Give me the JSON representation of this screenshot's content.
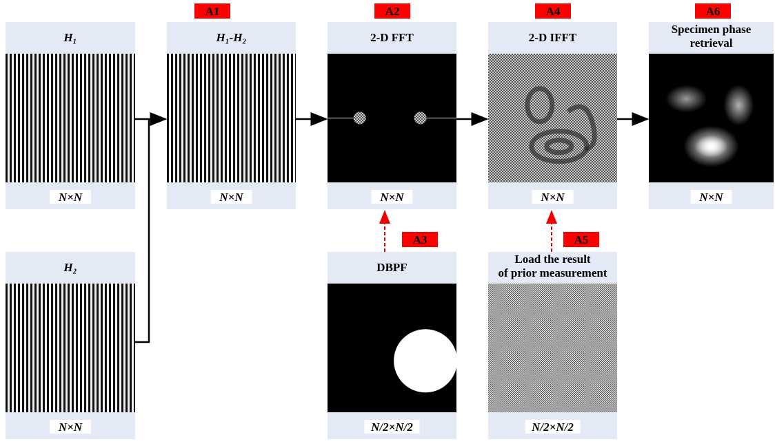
{
  "nodes": [
    {
      "title": "H₁",
      "size": "N×N"
    },
    {
      "title": "H₁-H₂",
      "size": "N×N"
    },
    {
      "title": "2-D FFT",
      "size": "N×N"
    },
    {
      "title": "2-D IFFT",
      "size": "N×N"
    },
    {
      "title": "Specimen phase retrieval",
      "size": "N×N"
    },
    {
      "title": "H₂",
      "size": "N×N"
    },
    {
      "title": "DBPF",
      "size": "N/2×N/2"
    },
    {
      "title": "Load the result of prior measurement",
      "size": "N/2×N/2"
    }
  ],
  "tags": [
    "A1",
    "A2",
    "A4",
    "A6",
    "A3",
    "A5"
  ]
}
